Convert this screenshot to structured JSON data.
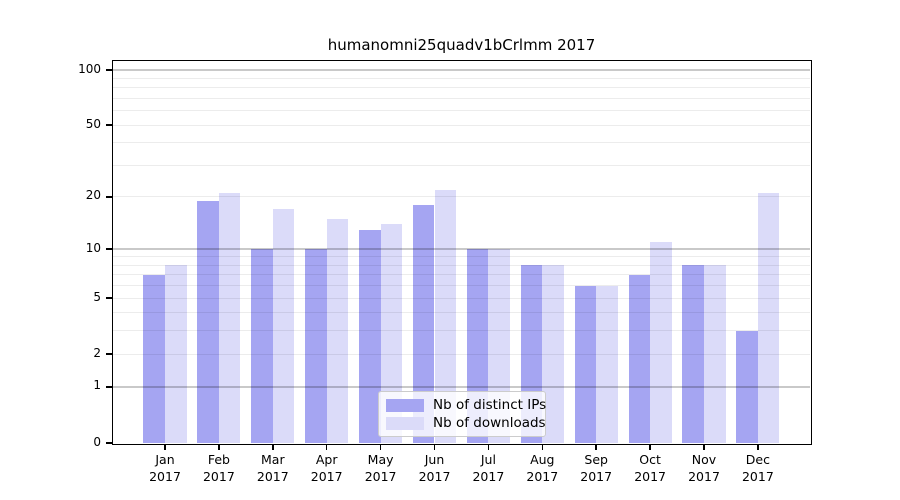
{
  "chart_data": {
    "type": "bar",
    "title": "humanomni25quadv1bCrlmm 2017",
    "categories": [
      "Jan",
      "Feb",
      "Mar",
      "Apr",
      "May",
      "Jun",
      "Jul",
      "Aug",
      "Sep",
      "Oct",
      "Nov",
      "Dec"
    ],
    "category_year": "2017",
    "series": [
      {
        "name": "Nb of distinct IPs",
        "color": "#a5a5f2",
        "values": [
          7,
          19,
          10,
          10,
          13,
          18,
          10,
          8,
          6,
          7,
          8,
          3
        ]
      },
      {
        "name": "Nb of downloads",
        "color": "#dbdbf9",
        "values": [
          8,
          21,
          17,
          15,
          14,
          22,
          10,
          8,
          6,
          11,
          8,
          21
        ]
      }
    ],
    "yscale": "log1p",
    "ylim": [
      0,
      113
    ],
    "yticks": [
      0,
      1,
      2,
      5,
      10,
      20,
      50,
      100
    ],
    "grid": {
      "major": [
        1,
        10,
        100
      ],
      "minor": [
        2,
        3,
        4,
        5,
        6,
        7,
        8,
        9,
        20,
        30,
        40,
        50,
        60,
        70,
        80,
        90
      ]
    },
    "legend_position": "bottom-center",
    "axis_color": "#000000",
    "background_color": "#ffffff"
  }
}
